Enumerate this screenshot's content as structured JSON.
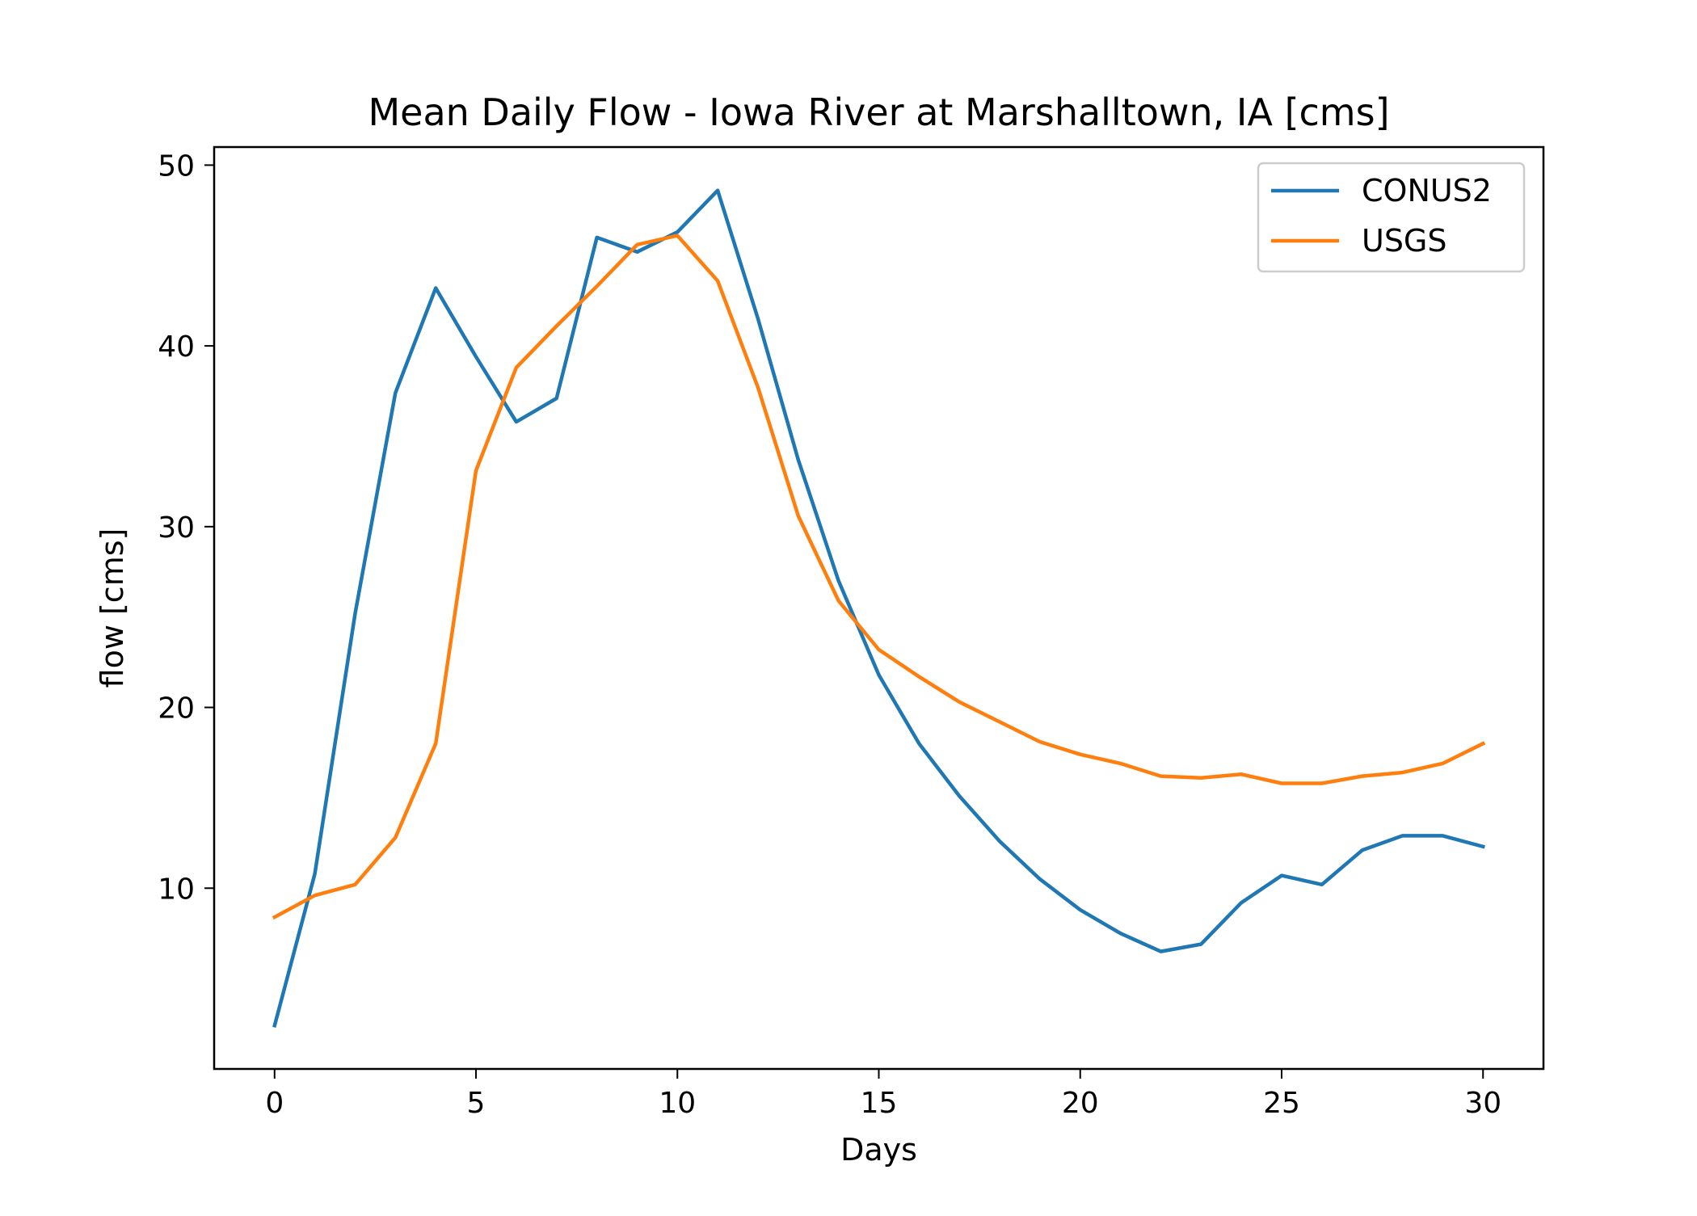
{
  "chart_data": {
    "type": "line",
    "title": "Mean Daily Flow - Iowa River at Marshalltown, IA [cms]",
    "xlabel": "Days",
    "ylabel": "flow [cms]",
    "xlim": [
      -1.5,
      31.5
    ],
    "ylim": [
      0,
      51
    ],
    "x_ticks": [
      0,
      5,
      10,
      15,
      20,
      25,
      30
    ],
    "y_ticks": [
      10,
      20,
      30,
      40,
      50
    ],
    "grid": false,
    "legend_position": "top-right",
    "x": [
      0,
      1,
      2,
      3,
      4,
      5,
      6,
      7,
      8,
      9,
      10,
      11,
      12,
      13,
      14,
      15,
      16,
      17,
      18,
      19,
      20,
      21,
      22,
      23,
      24,
      25,
      26,
      27,
      28,
      29,
      30
    ],
    "series": [
      {
        "name": "CONUS2",
        "color": "#1f77b4",
        "values": [
          2.4,
          10.8,
          25.2,
          37.4,
          43.2,
          39.4,
          35.8,
          37.1,
          46.0,
          45.2,
          46.3,
          48.6,
          41.5,
          33.7,
          27.0,
          21.8,
          18.0,
          15.1,
          12.6,
          10.5,
          8.8,
          7.5,
          6.5,
          6.9,
          9.2,
          10.7,
          10.2,
          12.1,
          12.9,
          12.9,
          12.3
        ]
      },
      {
        "name": "USGS",
        "color": "#ff7f0e",
        "values": [
          8.4,
          9.6,
          10.2,
          12.8,
          18.0,
          33.1,
          38.8,
          41.1,
          43.3,
          45.6,
          46.1,
          43.6,
          37.7,
          30.6,
          25.9,
          23.2,
          21.7,
          20.3,
          19.2,
          18.1,
          17.4,
          16.9,
          16.2,
          16.1,
          16.3,
          15.8,
          15.8,
          16.2,
          16.4,
          16.9,
          18.0
        ]
      }
    ]
  }
}
